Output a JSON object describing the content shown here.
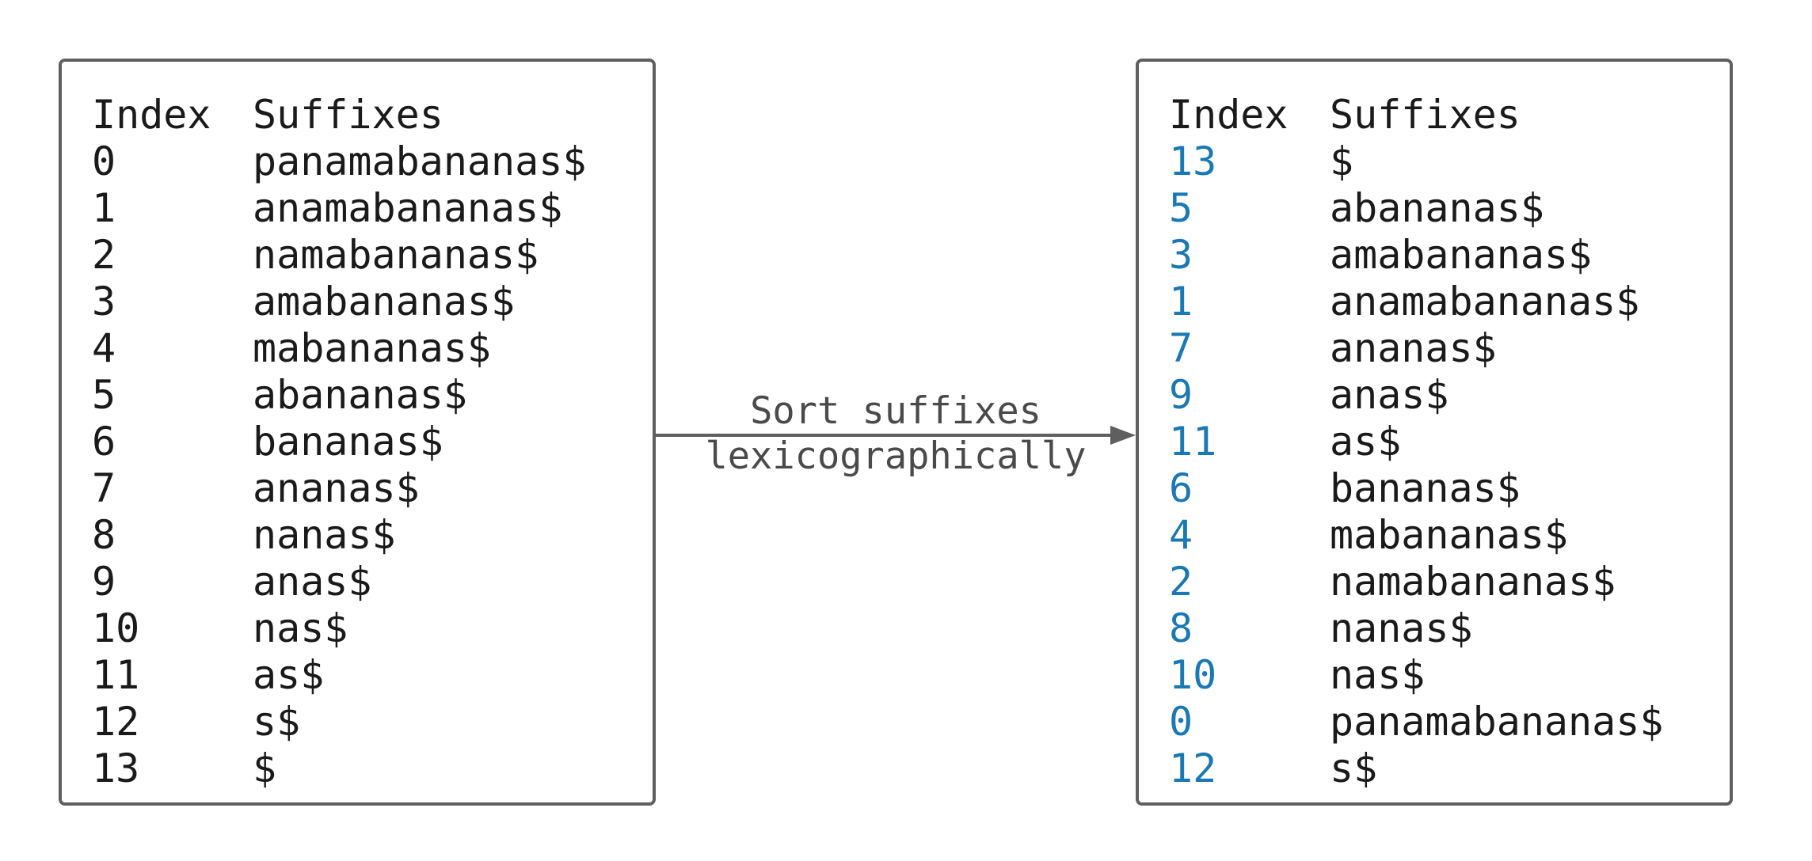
{
  "left_table": {
    "header": {
      "index": "Index",
      "suffixes": "Suffixes"
    },
    "rows": [
      {
        "index": "0",
        "suffix": "panamabananas$"
      },
      {
        "index": "1",
        "suffix": "anamabananas$"
      },
      {
        "index": "2",
        "suffix": "namabananas$"
      },
      {
        "index": "3",
        "suffix": "amabananas$"
      },
      {
        "index": "4",
        "suffix": "mabananas$"
      },
      {
        "index": "5",
        "suffix": "abananas$"
      },
      {
        "index": "6",
        "suffix": "bananas$"
      },
      {
        "index": "7",
        "suffix": "ananas$"
      },
      {
        "index": "8",
        "suffix": "nanas$"
      },
      {
        "index": "9",
        "suffix": "anas$"
      },
      {
        "index": "10",
        "suffix": "nas$"
      },
      {
        "index": "11",
        "suffix": "as$"
      },
      {
        "index": "12",
        "suffix": "s$"
      },
      {
        "index": "13",
        "suffix": "$"
      }
    ]
  },
  "arrow": {
    "label_line1": "Sort suffixes",
    "label_line2": "lexicographically"
  },
  "right_table": {
    "header": {
      "index": "Index",
      "suffixes": "Suffixes"
    },
    "rows": [
      {
        "index": "13",
        "suffix": "$"
      },
      {
        "index": "5",
        "suffix": "abananas$"
      },
      {
        "index": "3",
        "suffix": "amabananas$"
      },
      {
        "index": "1",
        "suffix": "anamabananas$"
      },
      {
        "index": "7",
        "suffix": "ananas$"
      },
      {
        "index": "9",
        "suffix": "anas$"
      },
      {
        "index": "11",
        "suffix": "as$"
      },
      {
        "index": "6",
        "suffix": "bananas$"
      },
      {
        "index": "4",
        "suffix": "mabananas$"
      },
      {
        "index": "2",
        "suffix": "namabananas$"
      },
      {
        "index": "8",
        "suffix": "nanas$"
      },
      {
        "index": "10",
        "suffix": "nas$"
      },
      {
        "index": "0",
        "suffix": "panamabananas$"
      },
      {
        "index": "12",
        "suffix": "s$"
      }
    ]
  },
  "colors": {
    "border": "#5f5f5f",
    "text": "#1a1a1a",
    "sorted_index": "#1a78b4",
    "arrow": "#5f5f5f"
  }
}
